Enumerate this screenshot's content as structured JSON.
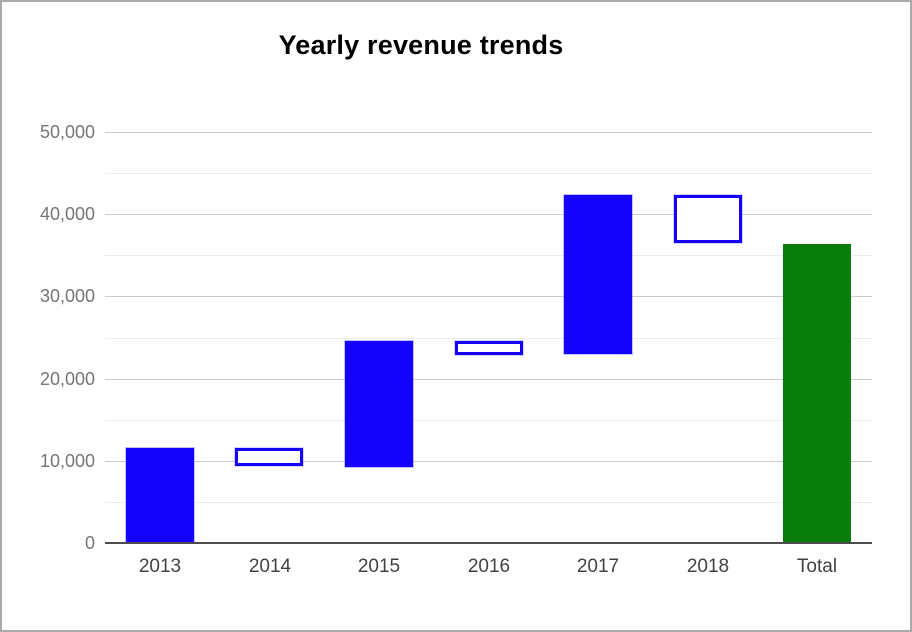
{
  "chart_data": {
    "type": "bar",
    "subtype": "waterfall",
    "title": "Yearly revenue trends",
    "categories": [
      "2013",
      "2014",
      "2015",
      "2016",
      "2017",
      "2018",
      "Total"
    ],
    "bars": [
      {
        "label": "2013",
        "start": 0,
        "end": 11500,
        "style": "filled",
        "direction": "rise"
      },
      {
        "label": "2014",
        "start": 11500,
        "end": 9300,
        "style": "hollow",
        "direction": "fall"
      },
      {
        "label": "2015",
        "start": 9300,
        "end": 24600,
        "style": "filled",
        "direction": "rise"
      },
      {
        "label": "2016",
        "start": 24600,
        "end": 22900,
        "style": "hollow",
        "direction": "fall"
      },
      {
        "label": "2017",
        "start": 22900,
        "end": 42300,
        "style": "filled",
        "direction": "rise"
      },
      {
        "label": "2018",
        "start": 42300,
        "end": 36400,
        "style": "hollow",
        "direction": "fall"
      },
      {
        "label": "Total",
        "start": 0,
        "end": 36400,
        "style": "total",
        "direction": "total"
      }
    ],
    "xlabel": "",
    "ylabel": "",
    "y_axis": {
      "min": 0,
      "max": 50000,
      "major_tick_interval": 10000,
      "minor_gridline_interval": 5000,
      "tick_labels": [
        "0",
        "10,000",
        "20,000",
        "30,000",
        "40,000",
        "50,000"
      ],
      "tick_values": [
        0,
        10000,
        20000,
        30000,
        40000,
        50000
      ]
    },
    "grid": "on",
    "legend": "none",
    "colors": {
      "rise_fill": "#1502fa",
      "fall_border": "#1502fa",
      "fall_fill": "#ffffff",
      "total_fill": "#087d0b",
      "major_gridline": "#cccccc",
      "minor_gridline": "#ebebeb",
      "axis_line": "#4d4d4d",
      "y_label_color": "#757575",
      "x_label_color": "#424242",
      "title_color": "#000000",
      "frame_border": "#a9a9ae"
    }
  }
}
